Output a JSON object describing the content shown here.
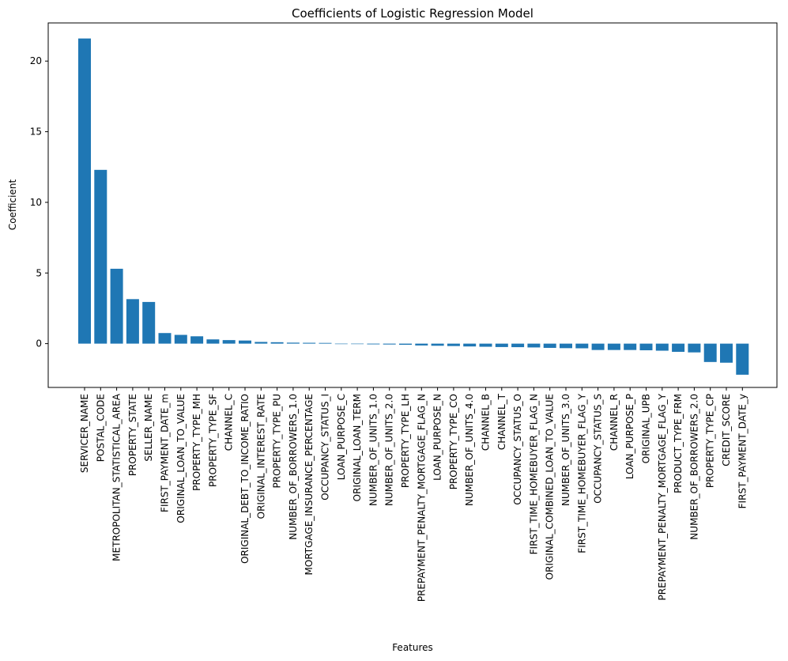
{
  "chart_data": {
    "type": "bar",
    "title": "Coefficients of Logistic Regression Model",
    "xlabel": "Features",
    "ylabel": "Coefficient",
    "ylim": [
      -3.1,
      22.7
    ],
    "yticks": [
      0,
      5,
      10,
      15,
      20
    ],
    "grid": false,
    "bar_color": "#1f77b4",
    "categories": [
      "SERVICER_NAME",
      "POSTAL_CODE",
      "METROPOLITAN_STATISTICAL_AREA",
      "PROPERTY_STATE",
      "SELLER_NAME",
      "FIRST_PAYMENT_DATE_m",
      "ORIGINAL_LOAN_TO_VALUE",
      "PROPERTY_TYPE_MH",
      "PROPERTY_TYPE_SF",
      "CHANNEL_C",
      "ORIGINAL_DEBT_TO_INCOME_RATIO",
      "ORIGINAL_INTEREST_RATE",
      "PROPERTY_TYPE_PU",
      "NUMBER_OF_BORROWERS_1.0",
      "MORTGAGE_INSURANCE_PERCENTAGE",
      "OCCUPANCY_STATUS_I",
      "LOAN_PURPOSE_C",
      "ORIGINAL_LOAN_TERM",
      "NUMBER_OF_UNITS_1.0",
      "NUMBER_OF_UNITS_2.0",
      "PROPERTY_TYPE_LH",
      "PREPAYMENT_PENALTY_MORTGAGE_FLAG_N",
      "LOAN_PURPOSE_N",
      "PROPERTY_TYPE_CO",
      "NUMBER_OF_UNITS_4.0",
      "CHANNEL_B",
      "CHANNEL_T",
      "OCCUPANCY_STATUS_O",
      "FIRST_TIME_HOMEBUYER_FLAG_N",
      "ORIGINAL_COMBINED_LOAN_TO_VALUE",
      "NUMBER_OF_UNITS_3.0",
      "FIRST_TIME_HOMEBUYER_FLAG_Y",
      "OCCUPANCY_STATUS_S",
      "CHANNEL_R",
      "LOAN_PURPOSE_P",
      "ORIGINAL_UPB",
      "PREPAYMENT_PENALTY_MORTGAGE_FLAG_Y",
      "PRODUCT_TYPE_FRM",
      "NUMBER_OF_BORROWERS_2.0",
      "PROPERTY_TYPE_CP",
      "CREDIT_SCORE",
      "FIRST_PAYMENT_DATE_y"
    ],
    "values": [
      21.6,
      12.3,
      5.3,
      3.15,
      2.95,
      0.75,
      0.62,
      0.52,
      0.3,
      0.25,
      0.22,
      0.12,
      0.1,
      0.07,
      0.06,
      0.05,
      0.0,
      0.0,
      -0.05,
      -0.06,
      -0.08,
      -0.13,
      -0.15,
      -0.17,
      -0.2,
      -0.22,
      -0.24,
      -0.25,
      -0.27,
      -0.3,
      -0.32,
      -0.33,
      -0.45,
      -0.45,
      -0.45,
      -0.47,
      -0.5,
      -0.58,
      -0.62,
      -1.3,
      -1.35,
      -2.2
    ]
  }
}
